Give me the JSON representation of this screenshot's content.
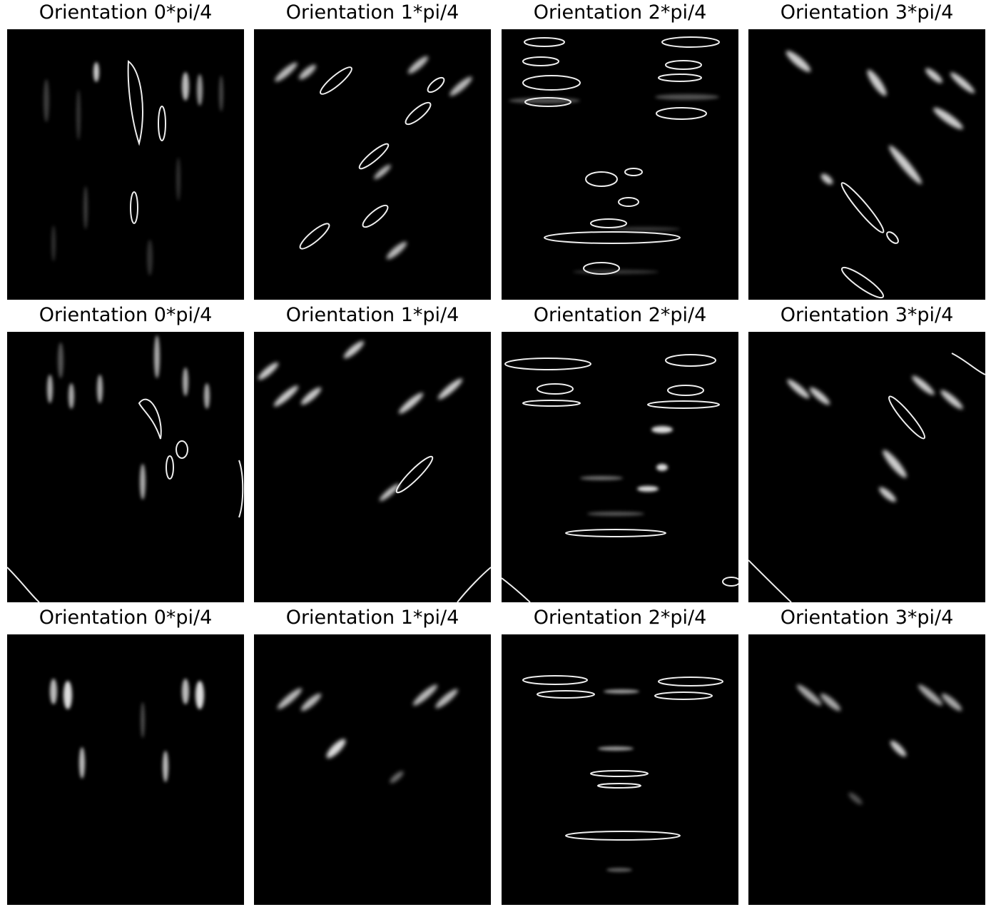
{
  "figure": {
    "panels": [
      {
        "title": "Orientation 0*pi/4",
        "orientation": 0
      },
      {
        "title": "Orientation 1*pi/4",
        "orientation": 1
      },
      {
        "title": "Orientation 2*pi/4",
        "orientation": 2
      },
      {
        "title": "Orientation 3*pi/4",
        "orientation": 3
      },
      {
        "title": "Orientation 0*pi/4",
        "orientation": 0
      },
      {
        "title": "Orientation 1*pi/4",
        "orientation": 1
      },
      {
        "title": "Orientation 2*pi/4",
        "orientation": 2
      },
      {
        "title": "Orientation 3*pi/4",
        "orientation": 3
      },
      {
        "title": "Orientation 0*pi/4",
        "orientation": 0
      },
      {
        "title": "Orientation 1*pi/4",
        "orientation": 1
      },
      {
        "title": "Orientation 2*pi/4",
        "orientation": 2
      },
      {
        "title": "Orientation 3*pi/4",
        "orientation": 3
      }
    ]
  }
}
